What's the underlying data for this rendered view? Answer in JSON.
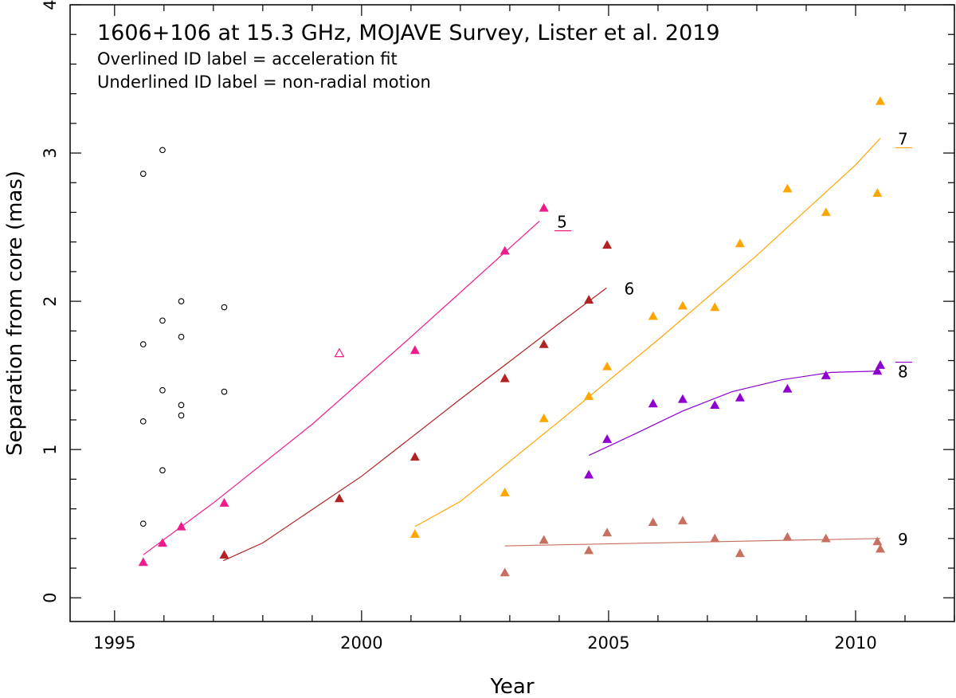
{
  "chart_data": {
    "type": "scatter",
    "title": "1606+106 at 15.3 GHz, MOJAVE Survey, Lister et al. 2019",
    "notes": [
      "Overlined ID label = acceleration fit",
      "Underlined ID label = non-radial motion"
    ],
    "xlabel": "Year",
    "ylabel": "Separation from core (mas)",
    "xlim": [
      1994.1,
      2012.0
    ],
    "ylim": [
      -0.16,
      4.0
    ],
    "xticks": [
      1995,
      2000,
      2005,
      2010
    ],
    "yticks": [
      0,
      1,
      2,
      3,
      4
    ],
    "unassigned": {
      "name": "unassigned components",
      "color": "#000000",
      "x": [
        1995.58,
        1995.58,
        1995.58,
        1995.58,
        1995.97,
        1995.97,
        1995.97,
        1995.97,
        1996.35,
        1996.35,
        1996.35,
        1996.35,
        1997.22,
        1997.22
      ],
      "y": [
        0.5,
        1.19,
        1.71,
        2.86,
        0.86,
        1.4,
        1.87,
        3.02,
        1.23,
        1.3,
        1.76,
        2.0,
        1.39,
        1.96
      ]
    },
    "series": [
      {
        "id": "5",
        "color": "#ee1a8c",
        "label_style": "underline",
        "x": [
          1995.58,
          1995.97,
          1996.35,
          1997.22,
          2001.08,
          2002.9,
          2003.69
        ],
        "y": [
          0.24,
          0.37,
          0.48,
          0.64,
          1.67,
          2.34,
          2.63
        ],
        "open_point": {
          "x": 1999.55,
          "y": 1.65
        },
        "fit": {
          "x": [
            1995.58,
            1997.0,
            1999.0,
            2001.0,
            2003.0,
            2003.6
          ],
          "y": [
            0.29,
            0.64,
            1.17,
            1.76,
            2.36,
            2.54
          ]
        }
      },
      {
        "id": "6",
        "color": "#b22222",
        "label_style": "plain",
        "x": [
          1997.22,
          1999.55,
          2001.08,
          2002.9,
          2003.69,
          2004.6,
          2004.97
        ],
        "y": [
          0.29,
          0.67,
          0.95,
          1.48,
          1.71,
          2.01,
          2.38
        ],
        "fit": {
          "x": [
            1997.2,
            1998.0,
            2000.0,
            2002.0,
            2004.0,
            2004.96
          ],
          "y": [
            0.25,
            0.37,
            0.82,
            1.34,
            1.85,
            2.09
          ]
        }
      },
      {
        "id": "7",
        "color": "#ffa500",
        "label_style": "underline",
        "x": [
          2001.08,
          2002.9,
          2003.69,
          2004.6,
          2004.97,
          2005.9,
          2006.5,
          2007.15,
          2007.66,
          2008.62,
          2009.4,
          2010.44,
          2010.5
        ],
        "y": [
          0.43,
          0.71,
          1.21,
          1.36,
          1.56,
          1.9,
          1.97,
          1.96,
          2.39,
          2.76,
          2.6,
          2.73,
          3.35
        ],
        "fit": {
          "x": [
            2001.08,
            2002.0,
            2004.0,
            2006.0,
            2008.0,
            2010.0,
            2010.5
          ],
          "y": [
            0.48,
            0.65,
            1.19,
            1.74,
            2.31,
            2.92,
            3.1
          ]
        }
      },
      {
        "id": "8",
        "color": "#8f00cf",
        "label_style": "overline",
        "x": [
          2004.6,
          2004.97,
          2005.9,
          2006.5,
          2007.15,
          2007.66,
          2008.62,
          2009.4,
          2010.44,
          2010.5
        ],
        "y": [
          0.83,
          1.07,
          1.31,
          1.34,
          1.3,
          1.35,
          1.41,
          1.5,
          1.53,
          1.57
        ],
        "fit": {
          "x": [
            2004.6,
            2005.5,
            2006.5,
            2007.5,
            2008.5,
            2009.5,
            2010.5
          ],
          "y": [
            0.96,
            1.1,
            1.26,
            1.39,
            1.47,
            1.52,
            1.53
          ]
        }
      },
      {
        "id": "9",
        "color": "#c87060",
        "label_style": "plain",
        "x": [
          2002.9,
          2003.69,
          2004.6,
          2004.97,
          2005.9,
          2006.5,
          2007.15,
          2007.66,
          2008.62,
          2009.4,
          2010.44,
          2010.5
        ],
        "y": [
          0.17,
          0.39,
          0.32,
          0.44,
          0.51,
          0.52,
          0.4,
          0.3,
          0.41,
          0.4,
          0.38,
          0.33
        ],
        "fit": {
          "x": [
            2002.9,
            2010.5
          ],
          "y": [
            0.35,
            0.4
          ]
        }
      }
    ]
  }
}
